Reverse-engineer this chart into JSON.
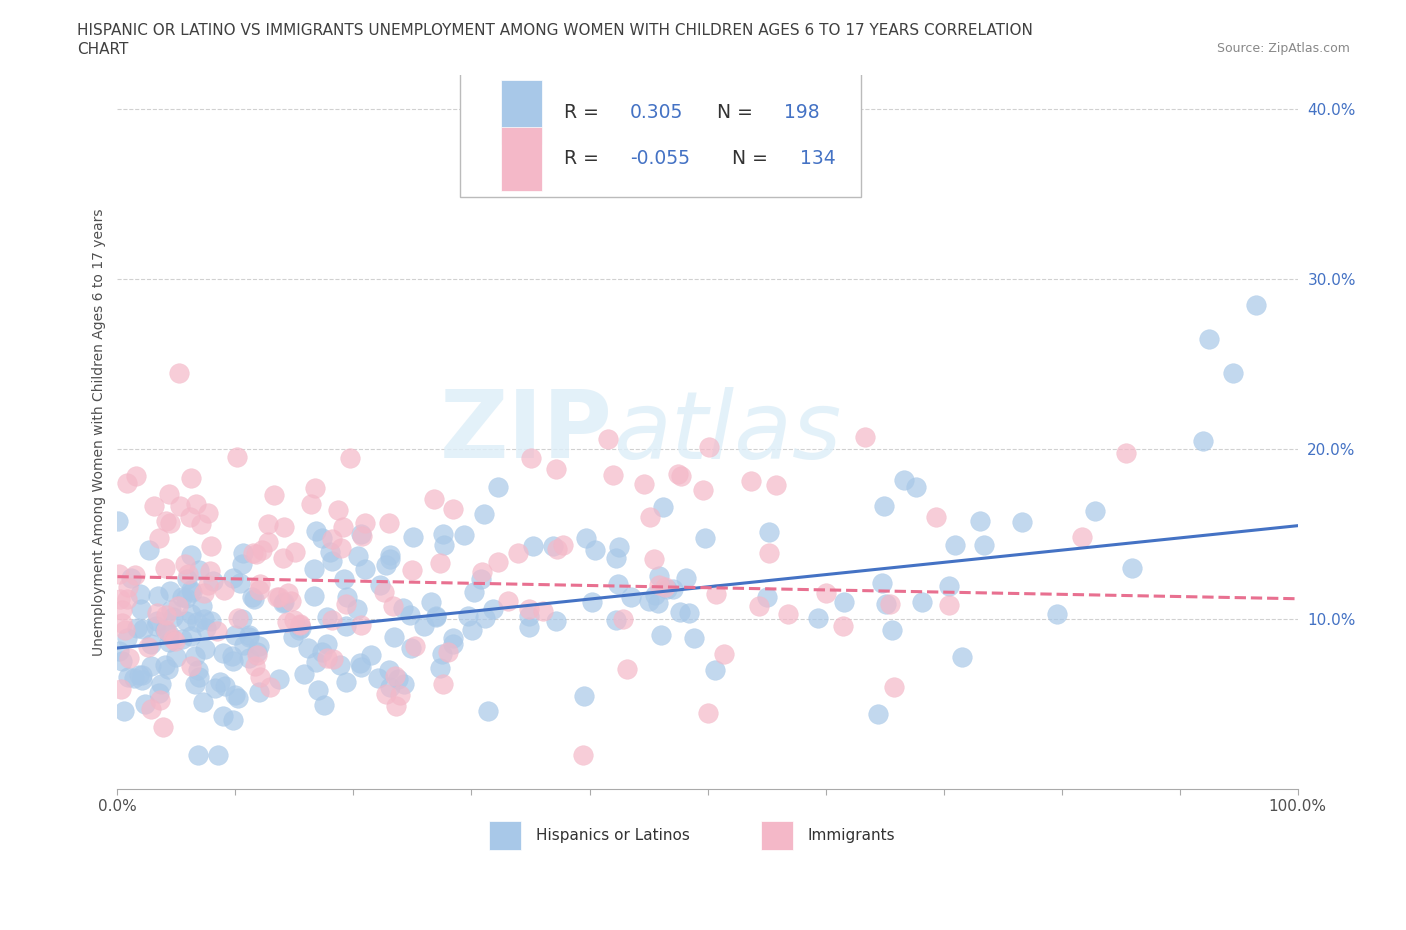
{
  "title_line1": "HISPANIC OR LATINO VS IMMIGRANTS UNEMPLOYMENT AMONG WOMEN WITH CHILDREN AGES 6 TO 17 YEARS CORRELATION",
  "title_line2": "CHART",
  "source": "Source: ZipAtlas.com",
  "ylabel": "Unemployment Among Women with Children Ages 6 to 17 years",
  "xlim": [
    0,
    1.0
  ],
  "ylim": [
    0,
    0.42
  ],
  "blue_color": "#a8c8e8",
  "pink_color": "#f4b8c8",
  "blue_line_color": "#4472c4",
  "pink_line_color": "#e87090",
  "legend_text_color": "#4472c4",
  "legend_label_color": "#333333",
  "watermark": "ZIPatlas",
  "background_color": "#ffffff",
  "grid_color": "#cccccc",
  "title_color": "#404040",
  "axis_label_color": "#505050",
  "tick_color": "#4472c4",
  "blue_trend_start": 0.083,
  "blue_trend_end": 0.155,
  "pink_trend_start": 0.125,
  "pink_trend_end": 0.112
}
